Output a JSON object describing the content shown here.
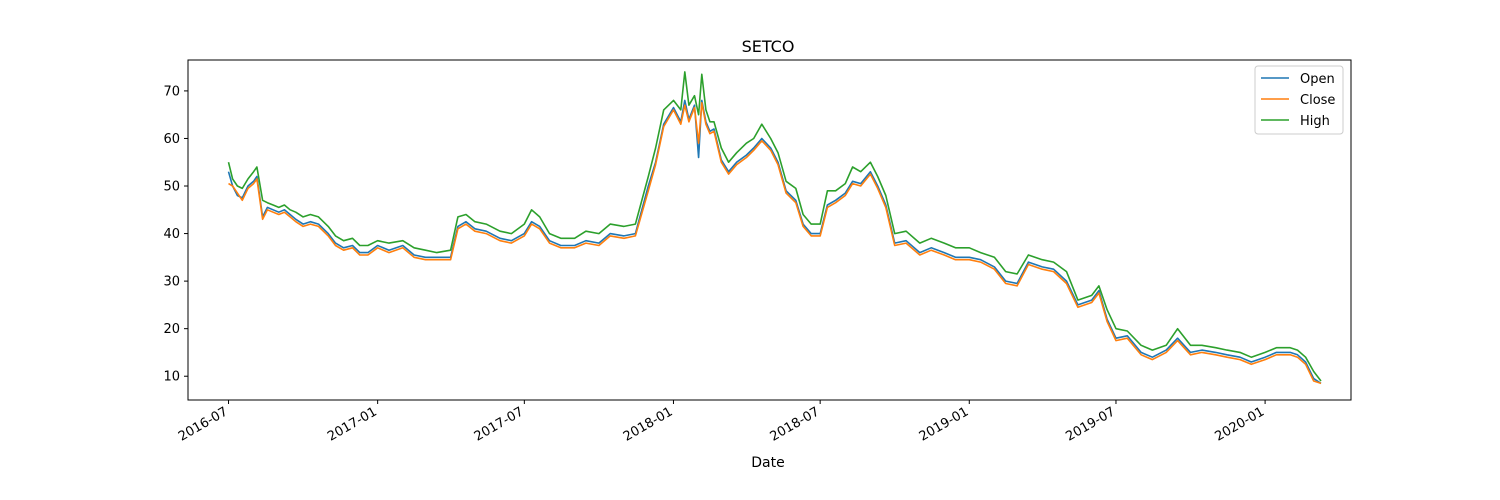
{
  "chart_data": {
    "type": "line",
    "title": "SETCO",
    "xlabel": "Date",
    "ylabel": "",
    "xlim": [
      "2016-05-12",
      "2020-04-16"
    ],
    "ylim": [
      5,
      76.5
    ],
    "x_ticks": [
      "2016-07",
      "2017-01",
      "2017-07",
      "2018-01",
      "2018-07",
      "2019-01",
      "2019-07",
      "2020-01"
    ],
    "y_ticks": [
      10,
      20,
      30,
      40,
      50,
      60,
      70
    ],
    "grid": false,
    "legend_position": "top-right",
    "colors": {
      "Open": "#1f77b4",
      "Close": "#ff7f0e",
      "High": "#2ca02c"
    },
    "x": [
      "2016-07-01",
      "2016-07-06",
      "2016-07-12",
      "2016-07-18",
      "2016-07-25",
      "2016-08-01",
      "2016-08-05",
      "2016-08-12",
      "2016-08-18",
      "2016-08-25",
      "2016-09-01",
      "2016-09-08",
      "2016-09-15",
      "2016-09-22",
      "2016-10-01",
      "2016-10-10",
      "2016-10-20",
      "2016-11-01",
      "2016-11-10",
      "2016-11-20",
      "2016-12-01",
      "2016-12-10",
      "2016-12-20",
      "2017-01-01",
      "2017-01-15",
      "2017-02-01",
      "2017-02-15",
      "2017-03-01",
      "2017-03-15",
      "2017-04-01",
      "2017-04-10",
      "2017-04-20",
      "2017-05-01",
      "2017-05-15",
      "2017-06-01",
      "2017-06-15",
      "2017-07-01",
      "2017-07-10",
      "2017-07-20",
      "2017-08-01",
      "2017-08-15",
      "2017-09-01",
      "2017-09-15",
      "2017-10-01",
      "2017-10-15",
      "2017-11-01",
      "2017-11-15",
      "2017-12-01",
      "2017-12-10",
      "2017-12-20",
      "2018-01-01",
      "2018-01-10",
      "2018-01-15",
      "2018-01-20",
      "2018-01-27",
      "2018-02-01",
      "2018-02-05",
      "2018-02-10",
      "2018-02-15",
      "2018-02-20",
      "2018-03-01",
      "2018-03-10",
      "2018-03-20",
      "2018-04-01",
      "2018-04-10",
      "2018-04-20",
      "2018-05-01",
      "2018-05-10",
      "2018-05-20",
      "2018-06-01",
      "2018-06-10",
      "2018-06-20",
      "2018-07-01",
      "2018-07-10",
      "2018-07-20",
      "2018-08-01",
      "2018-08-10",
      "2018-08-20",
      "2018-09-01",
      "2018-09-10",
      "2018-09-20",
      "2018-10-01",
      "2018-10-15",
      "2018-11-01",
      "2018-11-15",
      "2018-12-01",
      "2018-12-15",
      "2019-01-01",
      "2019-01-15",
      "2019-02-01",
      "2019-02-15",
      "2019-03-01",
      "2019-03-15",
      "2019-04-01",
      "2019-04-15",
      "2019-05-01",
      "2019-05-15",
      "2019-06-01",
      "2019-06-10",
      "2019-06-20",
      "2019-07-01",
      "2019-07-15",
      "2019-08-01",
      "2019-08-15",
      "2019-09-01",
      "2019-09-15",
      "2019-10-01",
      "2019-10-15",
      "2019-11-01",
      "2019-11-15",
      "2019-12-01",
      "2019-12-15",
      "2020-01-01",
      "2020-01-15",
      "2020-02-01",
      "2020-02-10",
      "2020-02-20",
      "2020-03-01",
      "2020-03-10"
    ],
    "series": [
      {
        "name": "Open",
        "values": [
          53,
          50,
          48,
          47.5,
          50,
          51,
          52,
          43.5,
          45.5,
          45,
          44.5,
          45,
          44,
          43,
          42,
          42.5,
          42,
          40,
          38,
          37,
          37.5,
          36,
          36,
          37.5,
          36.5,
          37.5,
          35.5,
          35,
          35,
          35,
          41.5,
          42.5,
          41,
          40.5,
          39,
          38.5,
          40,
          42.5,
          41.5,
          38.5,
          37.5,
          37.5,
          38.5,
          38,
          40,
          39.5,
          40,
          50,
          55,
          63,
          66.5,
          63.5,
          68,
          64,
          67,
          56,
          68,
          63.5,
          61.5,
          62,
          55.5,
          53,
          55,
          56.5,
          58,
          60,
          58,
          55,
          49,
          47,
          42,
          40,
          40,
          46,
          47,
          48.5,
          51,
          50.5,
          53,
          50,
          46,
          38,
          38.5,
          36,
          37,
          36,
          35,
          35,
          34.5,
          33,
          30,
          29.5,
          34,
          33,
          32.5,
          30,
          25,
          26,
          28,
          22,
          18,
          18.5,
          15,
          14,
          15.5,
          18,
          15,
          15.5,
          15,
          14.5,
          14,
          13,
          14,
          15,
          15,
          14.5,
          13,
          9.5,
          8.5
        ]
      },
      {
        "name": "Close",
        "values": [
          50.5,
          50,
          48.5,
          47,
          49.5,
          50.5,
          51.5,
          43,
          45,
          44.5,
          44,
          44.5,
          43.5,
          42.5,
          41.5,
          42,
          41.5,
          39.5,
          37.5,
          36.5,
          37,
          35.5,
          35.5,
          37,
          36,
          37,
          35,
          34.5,
          34.5,
          34.5,
          41,
          42,
          40.5,
          40,
          38.5,
          38,
          39.5,
          42,
          41,
          38,
          37,
          37,
          38,
          37.5,
          39.5,
          39,
          39.5,
          49,
          54.5,
          62.5,
          66,
          63,
          67,
          63.5,
          66.5,
          59,
          67.5,
          63,
          61,
          61.5,
          55,
          52.5,
          54.5,
          56,
          57.5,
          59.5,
          57.5,
          54.5,
          48.5,
          46.5,
          41.5,
          39.5,
          39.5,
          45.5,
          46.5,
          48,
          50.5,
          50,
          52.5,
          49.5,
          45.5,
          37.5,
          38,
          35.5,
          36.5,
          35.5,
          34.5,
          34.5,
          34,
          32.5,
          29.5,
          29,
          33.5,
          32.5,
          32,
          29.5,
          24.5,
          25.5,
          27.5,
          21.5,
          17.5,
          18,
          14.5,
          13.5,
          15,
          17.5,
          14.5,
          15,
          14.5,
          14,
          13.5,
          12.5,
          13.5,
          14.5,
          14.5,
          14,
          12.5,
          9,
          8.5
        ]
      },
      {
        "name": "High",
        "values": [
          55,
          51.5,
          50,
          49.5,
          51.5,
          53,
          54,
          47,
          46.5,
          46,
          45.5,
          46,
          45,
          44.5,
          43.5,
          44,
          43.5,
          41.5,
          39.5,
          38.5,
          39,
          37.5,
          37.5,
          38.5,
          38,
          38.5,
          37,
          36.5,
          36,
          36.5,
          43.5,
          44,
          42.5,
          42,
          40.5,
          40,
          42,
          45,
          43.5,
          40,
          39,
          39,
          40.5,
          40,
          42,
          41.5,
          42,
          52,
          58,
          66,
          68,
          66,
          74,
          67,
          69,
          65,
          73.5,
          66,
          63.5,
          63.5,
          58,
          55,
          57,
          59,
          60,
          63,
          60,
          57,
          51,
          49.5,
          44,
          42,
          42,
          49,
          49,
          50.5,
          54,
          53,
          55,
          52,
          48,
          40,
          40.5,
          38,
          39,
          38,
          37,
          37,
          36,
          35,
          32,
          31.5,
          35.5,
          34.5,
          34,
          32,
          26,
          27,
          29,
          24,
          20,
          19.5,
          16.5,
          15.5,
          16.5,
          20,
          16.5,
          16.5,
          16,
          15.5,
          15,
          14,
          15,
          16,
          16,
          15.5,
          14,
          11,
          9
        ]
      }
    ]
  }
}
